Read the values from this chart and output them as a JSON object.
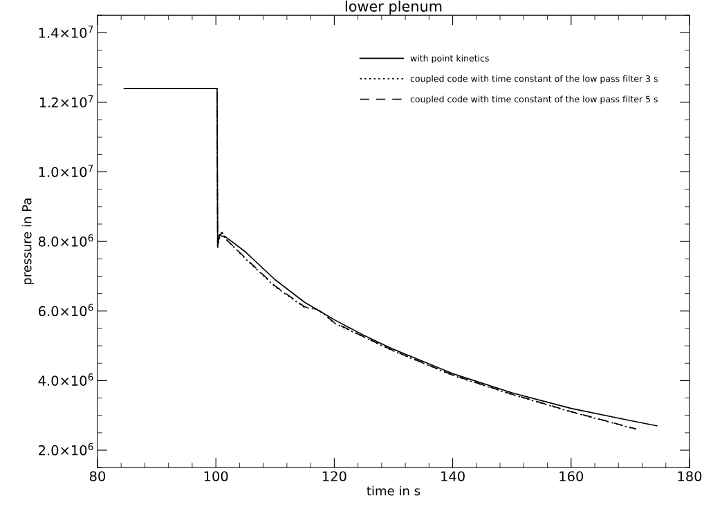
{
  "chart_data": {
    "type": "line",
    "title": "lower plenum",
    "xlabel": "time in s",
    "ylabel": "pressure in Pa",
    "xlim": [
      80,
      180
    ],
    "xticks": [
      80,
      100,
      120,
      140,
      160,
      180
    ],
    "ylim": [
      1500000,
      14500000
    ],
    "yticks": [
      {
        "value": 2000000,
        "label": "2.0×10$^{6}$"
      },
      {
        "value": 4000000,
        "label": "4.0×10$^{6}$"
      },
      {
        "value": 6000000,
        "label": "6.0×10$^{6}$"
      },
      {
        "value": 8000000,
        "label": "8.0×10$^{6}$"
      },
      {
        "value": 10000000,
        "label": "1.0×10$^{7}$"
      },
      {
        "value": 12000000,
        "label": "1.2×10$^{7}$"
      },
      {
        "value": 14000000,
        "label": "1.4×10$^{7}$"
      }
    ],
    "grid": false,
    "legend": "top right",
    "marker": "none",
    "series": [
      {
        "name": "with point kinetics",
        "color": "#000000",
        "line_style": "solid",
        "x": [
          84.5,
          100.2,
          100.3,
          100.6,
          101.0,
          101.5,
          105,
          110,
          115,
          117,
          120,
          125,
          130,
          140,
          150,
          160,
          170,
          174.5
        ],
        "values": [
          12400000,
          12400000,
          7900000,
          8200000,
          8150000,
          8150000,
          7700000,
          6900000,
          6250000,
          6050000,
          5750000,
          5300000,
          4900000,
          4200000,
          3650000,
          3200000,
          2850000,
          2700000
        ]
      },
      {
        "name": "coupled code with time constant of the low pass filter 3 s",
        "color": "#000000",
        "line_style": "dotted",
        "x": [
          84.5,
          100.2,
          100.3,
          100.6,
          101.0,
          101.5,
          105,
          110,
          115,
          117,
          118,
          120,
          125,
          130,
          140,
          150,
          160,
          171
        ],
        "values": [
          12400000,
          12400000,
          7800000,
          8100000,
          8300000,
          8100000,
          7500000,
          6700000,
          6100000,
          6050000,
          5950000,
          5650000,
          5250000,
          4850000,
          4150000,
          3600000,
          3100000,
          2600000
        ]
      },
      {
        "name": "coupled code with time constant of the low pass filter 5 s",
        "color": "#000000",
        "line_style": "dashed",
        "x": [
          84.5,
          100.2,
          100.3,
          100.6,
          101.0,
          101.5,
          105,
          110,
          115,
          117,
          118,
          120,
          125,
          130,
          140,
          150,
          160,
          171
        ],
        "values": [
          12400000,
          12400000,
          7850000,
          8150000,
          8250000,
          8100000,
          7520000,
          6720000,
          6120000,
          6050000,
          5950000,
          5670000,
          5260000,
          4860000,
          4160000,
          3610000,
          3110000,
          2610000
        ]
      }
    ]
  }
}
